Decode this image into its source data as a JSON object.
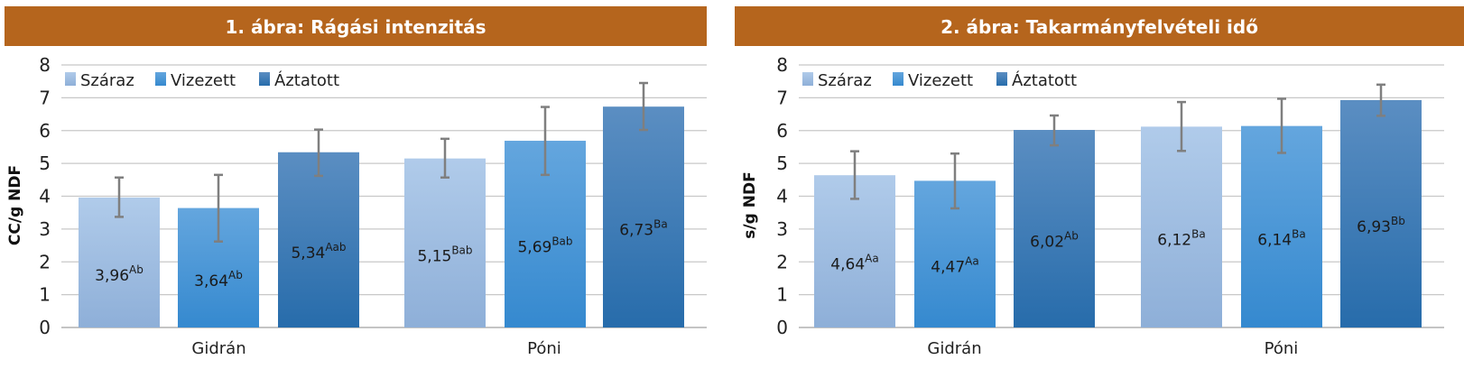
{
  "colors": {
    "title_bar": "#b5651d",
    "grid": "#c8c8c8",
    "error_bar": "#7f7f7f",
    "series": [
      [
        "#b0cbea",
        "#8eafd8"
      ],
      [
        "#64a6de",
        "#3589cf"
      ],
      [
        "#5b8ec2",
        "#276cab"
      ]
    ]
  },
  "chart_data": [
    {
      "type": "bar",
      "title": "1. ábra: Rágási intenzitás",
      "ylabel": "CC/g NDF",
      "xlabel": "",
      "ylim": [
        0,
        8
      ],
      "yticks": [
        "0",
        "1",
        "2",
        "3",
        "4",
        "5",
        "6",
        "7",
        "8"
      ],
      "grid": true,
      "legend_placement": "top-left",
      "categories": [
        "Gidrán",
        "Póni"
      ],
      "series": [
        {
          "name": "Száraz",
          "values": [
            3.96,
            5.15
          ],
          "labels": [
            "3,96",
            "5,15"
          ],
          "sup": [
            "Ab",
            "Bab"
          ],
          "err_low": [
            3.37,
            4.57
          ],
          "err_high": [
            4.57,
            5.75
          ]
        },
        {
          "name": "Vizezett",
          "values": [
            3.64,
            5.69
          ],
          "labels": [
            "3,64",
            "5,69"
          ],
          "sup": [
            "Ab",
            "Bab"
          ],
          "err_low": [
            2.62,
            4.65
          ],
          "err_high": [
            4.65,
            6.72
          ]
        },
        {
          "name": "Áztatott",
          "values": [
            5.34,
            6.73
          ],
          "labels": [
            "5,34",
            "6,73"
          ],
          "sup": [
            "Aab",
            "Ba"
          ],
          "err_low": [
            4.62,
            6.02
          ],
          "err_high": [
            6.03,
            7.45
          ]
        }
      ]
    },
    {
      "type": "bar",
      "title": "2. ábra: Takarmányfelvételi idő",
      "ylabel": "s/g NDF",
      "xlabel": "",
      "ylim": [
        0,
        8
      ],
      "yticks": [
        "0",
        "1",
        "2",
        "3",
        "4",
        "5",
        "6",
        "7",
        "8"
      ],
      "grid": true,
      "legend_placement": "top-left",
      "categories": [
        "Gidrán",
        "Póni"
      ],
      "series": [
        {
          "name": "Száraz",
          "values": [
            4.64,
            6.12
          ],
          "labels": [
            "4,64",
            "6,12"
          ],
          "sup": [
            "Aa",
            "Ba"
          ],
          "err_low": [
            3.92,
            5.38
          ],
          "err_high": [
            5.37,
            6.87
          ]
        },
        {
          "name": "Vizezett",
          "values": [
            4.47,
            6.14
          ],
          "labels": [
            "4,47",
            "6,14"
          ],
          "sup": [
            "Aa",
            "Ba"
          ],
          "err_low": [
            3.63,
            5.32
          ],
          "err_high": [
            5.3,
            6.97
          ]
        },
        {
          "name": "Áztatott",
          "values": [
            6.02,
            6.93
          ],
          "labels": [
            "6,02",
            "6,93"
          ],
          "sup": [
            "Ab",
            "Bb"
          ],
          "err_low": [
            5.55,
            6.45
          ],
          "err_high": [
            6.46,
            7.4
          ]
        }
      ]
    }
  ]
}
